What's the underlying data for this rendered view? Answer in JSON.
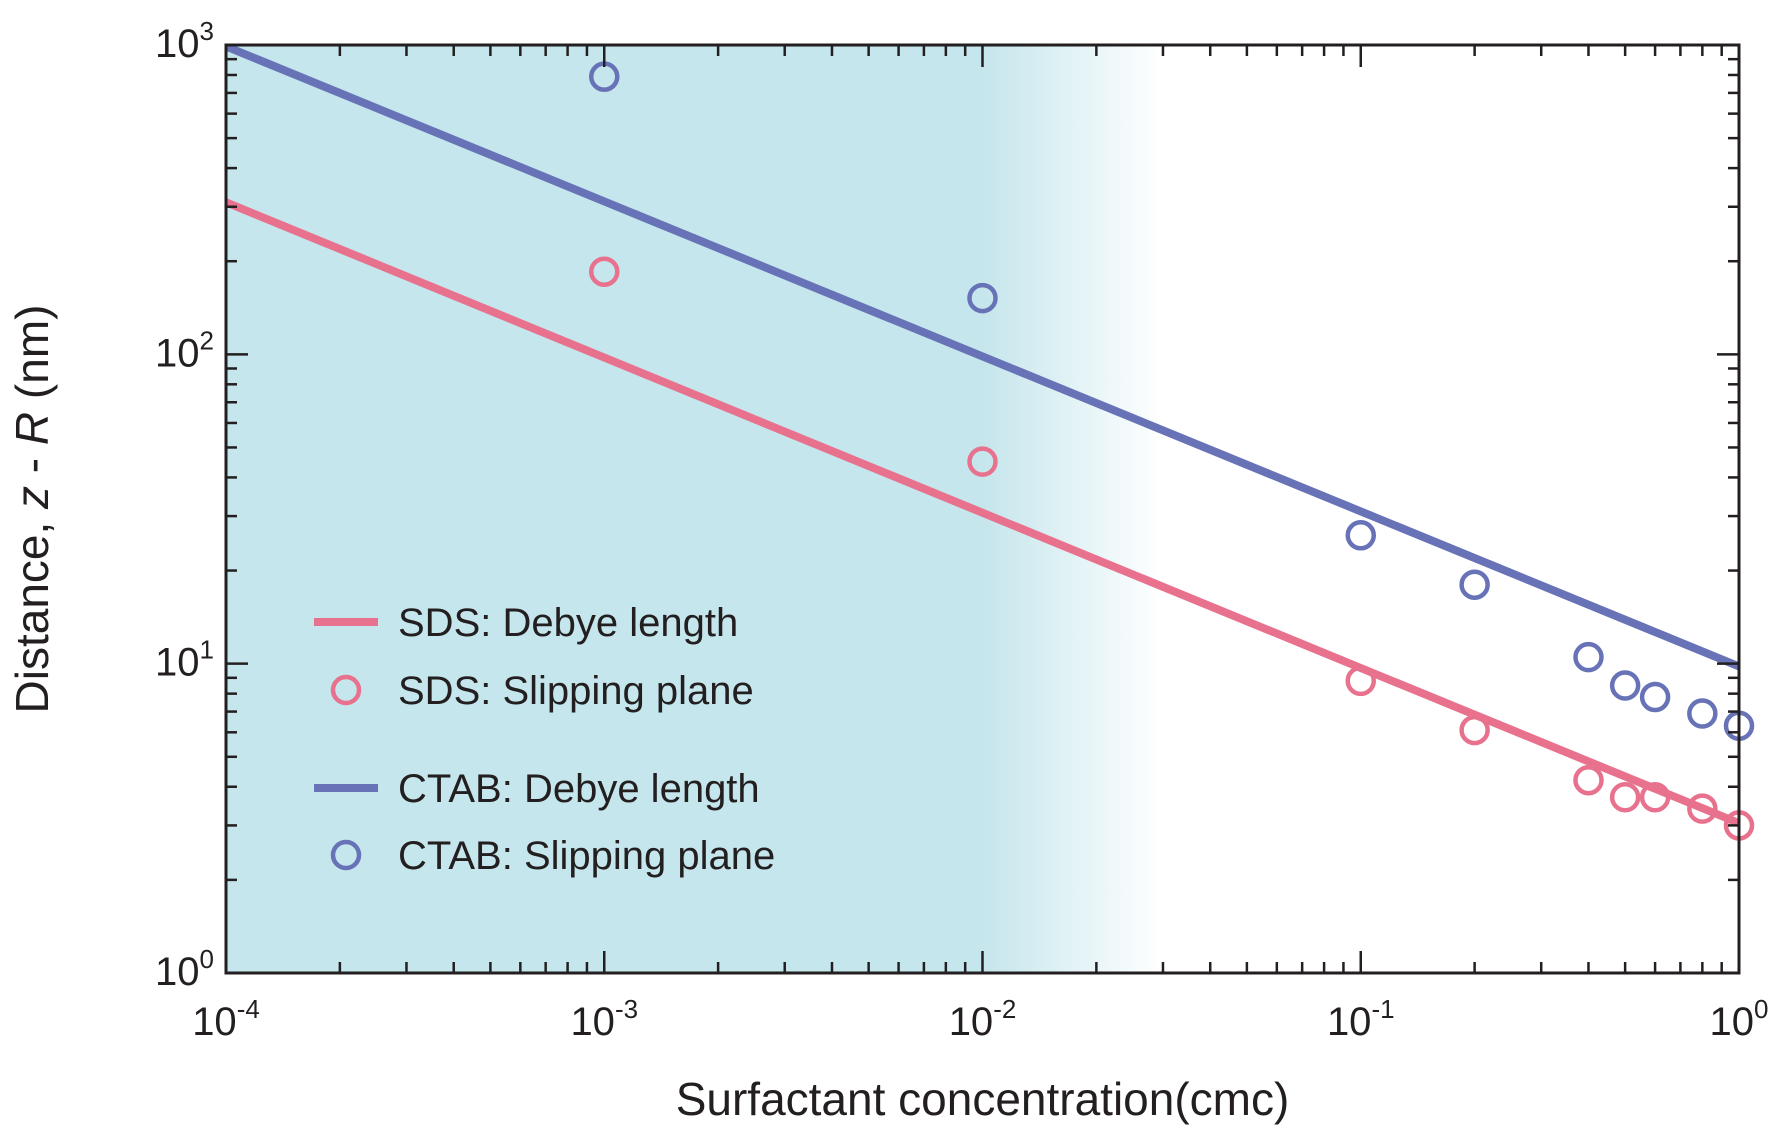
{
  "chart_data": {
    "type": "scatter",
    "xscale": "log",
    "yscale": "log",
    "xlim": [
      0.0001,
      1
    ],
    "ylim": [
      1,
      1000
    ],
    "xlabel": "Surfactant concentration(cmc)",
    "ylabel": {
      "prefix": "Distance, ",
      "var1": "z",
      "mid": " - ",
      "var2": "R",
      "suffix": " (nm)"
    },
    "grid": false,
    "legend_position": "lower-left",
    "x_ticks": [
      {
        "value": 0.0001,
        "base": "10",
        "exp": "-4"
      },
      {
        "value": 0.001,
        "base": "10",
        "exp": "-3"
      },
      {
        "value": 0.01,
        "base": "10",
        "exp": "-2"
      },
      {
        "value": 0.1,
        "base": "10",
        "exp": "-1"
      },
      {
        "value": 1,
        "base": "10",
        "exp": "0"
      }
    ],
    "y_ticks": [
      {
        "value": 1,
        "base": "10",
        "exp": "0"
      },
      {
        "value": 10,
        "base": "10",
        "exp": "1"
      },
      {
        "value": 100,
        "base": "10",
        "exp": "2"
      },
      {
        "value": 1000,
        "base": "10",
        "exp": "3"
      }
    ],
    "shaded_region": {
      "x_start": 0.0001,
      "x_fade_start": 0.01,
      "x_end": 0.03,
      "color": "#c5e6ec"
    },
    "series": [
      {
        "name": "SDS: Debye length",
        "kind": "line",
        "color": "#e8728e",
        "x": [
          0.0001,
          1
        ],
        "y": [
          310,
          3.05
        ]
      },
      {
        "name": "SDS: Slipping plane",
        "kind": "scatter",
        "color": "#e8728e",
        "x": [
          0.001,
          0.01,
          0.1,
          0.2,
          0.4,
          0.5,
          0.6,
          0.8,
          1.0
        ],
        "y": [
          185,
          45,
          8.8,
          6.1,
          4.2,
          3.7,
          3.7,
          3.4,
          3.0
        ]
      },
      {
        "name": "CTAB: Debye length",
        "kind": "line",
        "color": "#6773b6",
        "x": [
          0.0001,
          1
        ],
        "y": [
          990,
          9.8
        ]
      },
      {
        "name": "CTAB: Slipping plane",
        "kind": "scatter",
        "color": "#6773b6",
        "x": [
          0.001,
          0.01,
          0.1,
          0.2,
          0.4,
          0.5,
          0.6,
          0.8,
          1.0
        ],
        "y": [
          790,
          152,
          26,
          18,
          10.5,
          8.5,
          7.8,
          6.9,
          6.3
        ]
      }
    ],
    "legend": [
      {
        "series": 0,
        "prefix": "SDS",
        "label": ": Debye length"
      },
      {
        "series": 1,
        "prefix": "SDS",
        "label": ": Slipping plane"
      },
      {
        "series": 2,
        "prefix": "CTAB",
        "label": ": Debye length"
      },
      {
        "series": 3,
        "prefix": "CTAB",
        "label": ": Slipping plane"
      }
    ]
  }
}
